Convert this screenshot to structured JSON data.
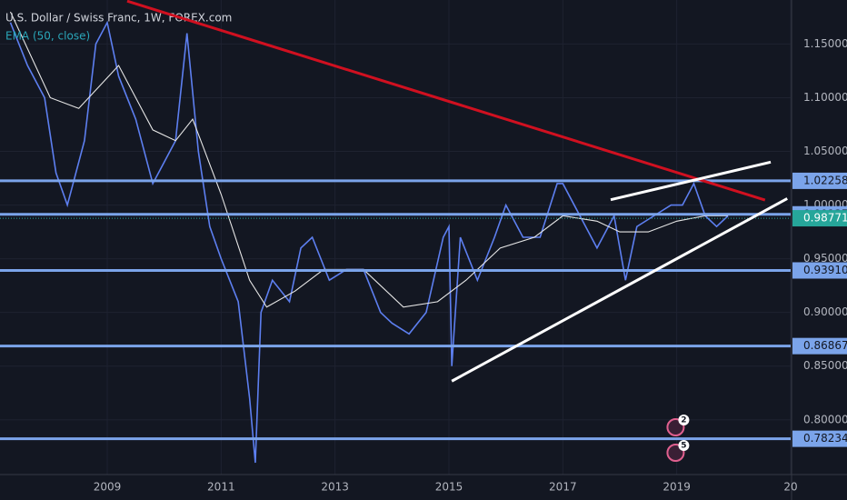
{
  "chart_data": {
    "type": "line",
    "title": "U.S. Dollar / Swiss Franc, 1W, FOREX.com",
    "subtitle": "EMA (50, close)",
    "xlim": [
      2007.117,
      2021.0
    ],
    "xticks": [
      2009,
      2011,
      2013,
      2015,
      2017,
      2019,
      {
        "value": 2021,
        "label": "20"
      }
    ],
    "ylim": [
      0.749,
      1.191
    ],
    "yticks": [
      {
        "value": 0.8,
        "label": "0.80000"
      },
      {
        "value": 0.85,
        "label": "0.85000"
      },
      {
        "value": 0.9,
        "label": "0.90000"
      },
      {
        "value": 0.95,
        "label": "0.95000"
      },
      {
        "value": 1.0,
        "label": "1.00000"
      },
      {
        "value": 1.05,
        "label": "1.05000"
      },
      {
        "value": 1.1,
        "label": "1.10000"
      },
      {
        "value": 1.15,
        "label": "1.15000"
      }
    ],
    "series": [
      {
        "name": "U.S. Dollar / Swiss Franc",
        "color": "#5d7ff0",
        "x": [
          2007.3,
          2007.6,
          2007.9,
          2008.1,
          2008.3,
          2008.6,
          2008.8,
          2009.0,
          2009.2,
          2009.5,
          2009.8,
          2010.0,
          2010.2,
          2010.4,
          2010.6,
          2010.8,
          2011.0,
          2011.3,
          2011.5,
          2011.6,
          2011.7,
          2011.9,
          2012.2,
          2012.4,
          2012.6,
          2012.9,
          2013.2,
          2013.5,
          2013.8,
          2014.0,
          2014.3,
          2014.6,
          2014.9,
          2015.0,
          2015.05,
          2015.2,
          2015.5,
          2015.8,
          2016.0,
          2016.3,
          2016.6,
          2016.9,
          2017.0,
          2017.3,
          2017.6,
          2017.9,
          2018.1,
          2018.3,
          2018.6,
          2018.9,
          2019.1,
          2019.3,
          2019.5,
          2019.7,
          2019.9
        ],
        "values": [
          1.17,
          1.13,
          1.1,
          1.03,
          1.0,
          1.06,
          1.15,
          1.17,
          1.12,
          1.08,
          1.02,
          1.04,
          1.06,
          1.16,
          1.05,
          0.98,
          0.95,
          0.91,
          0.82,
          0.76,
          0.9,
          0.93,
          0.91,
          0.96,
          0.97,
          0.93,
          0.94,
          0.94,
          0.9,
          0.89,
          0.88,
          0.9,
          0.97,
          0.98,
          0.85,
          0.97,
          0.93,
          0.97,
          1.0,
          0.97,
          0.97,
          1.02,
          1.02,
          0.99,
          0.96,
          0.99,
          0.93,
          0.98,
          0.99,
          1.0,
          1.0,
          1.02,
          0.99,
          0.98,
          0.99
        ]
      },
      {
        "name": "EMA (50, close)",
        "color": "#e6e6e6",
        "x": [
          2007.3,
          2008.0,
          2008.5,
          2009.2,
          2009.8,
          2010.2,
          2010.5,
          2011.0,
          2011.5,
          2011.8,
          2012.3,
          2012.8,
          2013.5,
          2014.2,
          2014.8,
          2015.3,
          2015.9,
          2016.5,
          2017.0,
          2017.6,
          2018.0,
          2018.5,
          2019.0,
          2019.5,
          2019.9
        ],
        "values": [
          1.18,
          1.1,
          1.09,
          1.13,
          1.07,
          1.06,
          1.08,
          1.01,
          0.93,
          0.905,
          0.92,
          0.94,
          0.94,
          0.905,
          0.91,
          0.93,
          0.96,
          0.97,
          0.99,
          0.985,
          0.975,
          0.975,
          0.985,
          0.99,
          0.99
        ]
      }
    ],
    "levels": [
      1.02258,
      0.99137,
      {
        "value": 0.9391,
        "label": "0.93910"
      },
      0.86867,
      0.78234
    ],
    "level_color": "#7ba4ea",
    "last_price": 0.98771,
    "last_price_color": "#26a69a",
    "trendlines": [
      {
        "color": "#d01020",
        "x": [
          2009.35,
          2020.55
        ],
        "values": [
          1.19,
          1.0047
        ]
      },
      {
        "color": "#ffffff",
        "x": [
          2015.05,
          2020.94
        ],
        "values": [
          0.836,
          1.006
        ]
      },
      {
        "color": "#ffffff",
        "x": [
          2017.84,
          2020.65
        ],
        "values": [
          1.005,
          1.04
        ]
      }
    ],
    "events": [
      {
        "x": 2018.98,
        "label": "2"
      },
      {
        "x": 2018.98,
        "label": "5"
      }
    ]
  }
}
